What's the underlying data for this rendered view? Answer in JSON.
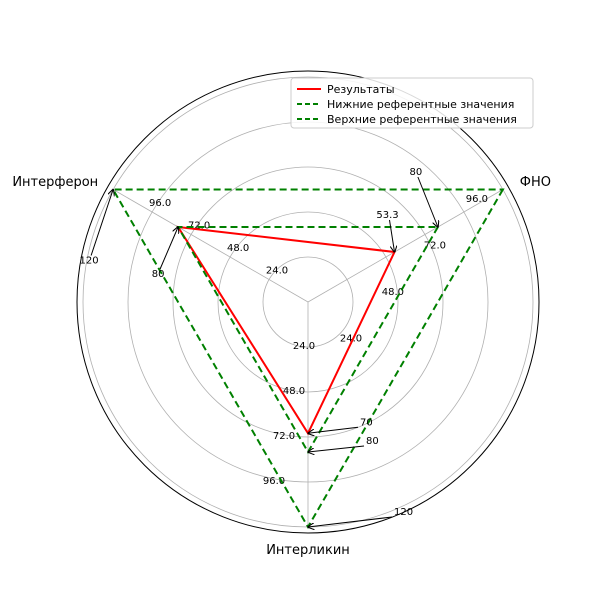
{
  "chart_data": {
    "type": "radar",
    "axes": [
      "ФНО",
      "Интерликин",
      "Интерферон"
    ],
    "rmax": 120,
    "ring_ticks": [
      "24.0",
      "48.0",
      "72.0",
      "96.0"
    ],
    "series": [
      {
        "name": "Результаты",
        "values": [
          53.3,
          70,
          80
        ],
        "color": "#ff0000",
        "dashed": false
      },
      {
        "name": "Нижние референтные значения",
        "values": [
          80,
          80,
          80
        ],
        "color": "#008000",
        "dashed": true
      },
      {
        "name": "Верхние референтные значения",
        "values": [
          120,
          120,
          120
        ],
        "color": "#008000",
        "dashed": true
      }
    ],
    "annotations": [
      {
        "axis": 0,
        "value": 53.3,
        "text": "53.3"
      },
      {
        "axis": 0,
        "value": 80,
        "text": "80"
      },
      {
        "axis": 1,
        "value": 70,
        "text": "70"
      },
      {
        "axis": 1,
        "value": 80,
        "text": "80"
      },
      {
        "axis": 1,
        "value": 120,
        "text": "120"
      },
      {
        "axis": 2,
        "value": 80,
        "text": "80"
      },
      {
        "axis": 2,
        "value": 120,
        "text": "120"
      }
    ],
    "legend_position": "top-right",
    "grid": true
  }
}
